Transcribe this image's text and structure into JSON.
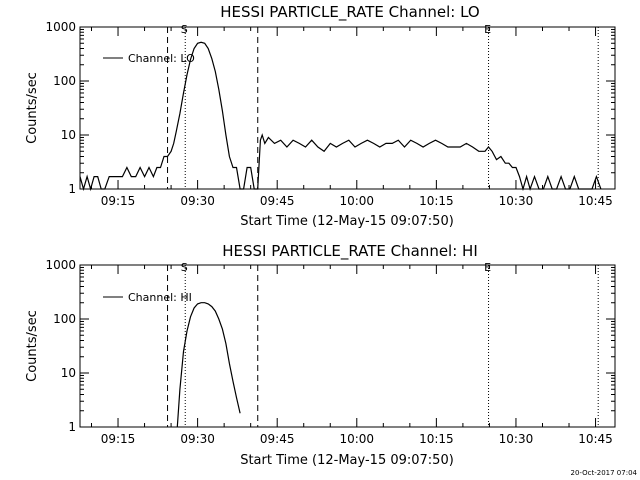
{
  "chart_data": [
    {
      "type": "line",
      "title": "HESSI PARTICLE_RATE Channel: LO",
      "xlabel": "Start Time (12-May-15 09:07:50)",
      "ylabel": "Counts/sec",
      "y_scale": "log",
      "ylim": [
        1,
        1000
      ],
      "xlim": [
        "09:07:50",
        "10:48:40"
      ],
      "x_ticks": [
        "09:15",
        "09:30",
        "09:45",
        "10:00",
        "10:15",
        "10:30",
        "10:45"
      ],
      "y_ticks": [
        "1",
        "10",
        "100",
        "1000"
      ],
      "legend": {
        "placement": "top-left",
        "entries": [
          "Channel: LO"
        ]
      },
      "markers": [
        {
          "time": "09:27:40",
          "style": "dotted",
          "label": "S"
        },
        {
          "time": "10:24:50",
          "style": "dotted",
          "label": "E"
        },
        {
          "time": "10:45:30",
          "style": "dotted",
          "label": ""
        },
        {
          "time": "09:24:20",
          "style": "dashed",
          "label": ""
        },
        {
          "time": "09:41:20",
          "style": "dashed",
          "label": ""
        }
      ],
      "series": [
        {
          "name": "Channel: LO",
          "x": [
            "09:07:50",
            "09:08:30",
            "09:09:10",
            "09:09:50",
            "09:10:30",
            "09:11:10",
            "09:11:50",
            "09:12:30",
            "09:13:20",
            "09:14:10",
            "09:15:00",
            "09:15:50",
            "09:16:40",
            "09:17:30",
            "09:18:20",
            "09:19:10",
            "09:20:00",
            "09:20:50",
            "09:21:40",
            "09:22:20",
            "09:23:00",
            "09:23:40",
            "09:24:20",
            "09:25:00",
            "09:25:30",
            "09:26:00",
            "09:26:40",
            "09:27:20",
            "09:28:00",
            "09:28:40",
            "09:29:20",
            "09:30:00",
            "09:30:40",
            "09:31:20",
            "09:32:00",
            "09:32:40",
            "09:33:20",
            "09:34:00",
            "09:34:40",
            "09:35:20",
            "09:36:00",
            "09:36:40",
            "09:37:20",
            "09:38:00",
            "09:38:40",
            "09:39:20",
            "09:40:00",
            "09:40:40",
            "09:41:20",
            "09:41:50",
            "09:42:10",
            "09:42:40",
            "09:43:20",
            "09:44:30",
            "09:45:40",
            "09:46:50",
            "09:48:00",
            "09:49:10",
            "09:50:20",
            "09:51:30",
            "09:52:40",
            "09:53:50",
            "09:55:00",
            "09:56:10",
            "09:57:20",
            "09:58:30",
            "09:59:40",
            "10:00:50",
            "10:02:00",
            "10:03:10",
            "10:04:20",
            "10:05:30",
            "10:06:40",
            "10:07:50",
            "10:09:00",
            "10:10:10",
            "10:11:20",
            "10:12:30",
            "10:13:40",
            "10:14:50",
            "10:16:00",
            "10:17:10",
            "10:18:20",
            "10:19:30",
            "10:20:40",
            "10:21:50",
            "10:23:00",
            "10:24:10",
            "10:24:50",
            "10:25:30",
            "10:26:20",
            "10:27:10",
            "10:28:00",
            "10:28:40",
            "10:29:20",
            "10:30:00",
            "10:30:40",
            "10:31:20",
            "10:32:00",
            "10:32:40",
            "10:33:30",
            "10:34:20",
            "10:35:10",
            "10:36:00",
            "10:36:50",
            "10:37:40",
            "10:38:30",
            "10:39:20",
            "10:40:10",
            "10:41:00",
            "10:41:50",
            "10:42:40",
            "10:43:30",
            "10:44:20",
            "10:45:10",
            "10:46:00"
          ],
          "y": [
            1.7,
            1,
            1.7,
            1,
            1.7,
            1.7,
            1,
            1,
            1.7,
            1.7,
            1.7,
            1.7,
            2.5,
            1.7,
            1.7,
            2.5,
            1.7,
            2.5,
            1.7,
            2.5,
            2.5,
            4,
            4,
            5,
            7,
            12,
            25,
            60,
            130,
            250,
            400,
            500,
            520,
            500,
            400,
            260,
            150,
            70,
            28,
            10,
            4,
            2.5,
            2.5,
            1,
            1,
            2.5,
            2.5,
            1,
            1,
            8,
            10,
            7,
            9,
            7,
            8,
            6,
            8,
            7,
            6,
            8,
            6,
            5,
            7,
            6,
            7,
            8,
            6,
            7,
            8,
            7,
            6,
            7,
            7,
            8,
            6,
            8,
            7,
            6,
            7,
            8,
            7,
            6,
            6,
            6,
            7,
            6,
            5,
            5,
            6,
            5,
            3.5,
            4,
            3,
            3,
            2.5,
            2.5,
            1.7,
            1,
            1.7,
            1,
            1.7,
            1,
            1,
            1.7,
            1,
            1,
            1.7,
            1,
            1,
            1.7,
            1,
            1,
            1,
            1,
            1.7,
            1
          ]
        }
      ]
    },
    {
      "type": "line",
      "title": "HESSI PARTICLE_RATE Channel: HI",
      "xlabel": "Start Time (12-May-15 09:07:50)",
      "ylabel": "Counts/sec",
      "y_scale": "log",
      "ylim": [
        1,
        1000
      ],
      "xlim": [
        "09:07:50",
        "10:48:40"
      ],
      "x_ticks": [
        "09:15",
        "09:30",
        "09:45",
        "10:00",
        "10:15",
        "10:30",
        "10:45"
      ],
      "y_ticks": [
        "1",
        "10",
        "100",
        "1000"
      ],
      "legend": {
        "placement": "top-left",
        "entries": [
          "Channel: HI"
        ]
      },
      "markers": [
        {
          "time": "09:27:40",
          "style": "dotted",
          "label": "S"
        },
        {
          "time": "10:24:50",
          "style": "dotted",
          "label": "E"
        },
        {
          "time": "10:45:30",
          "style": "dotted",
          "label": ""
        },
        {
          "time": "09:24:20",
          "style": "dashed",
          "label": ""
        },
        {
          "time": "09:41:20",
          "style": "dashed",
          "label": ""
        }
      ],
      "series": [
        {
          "name": "Channel: HI",
          "x": [
            "09:26:10",
            "09:26:40",
            "09:27:20",
            "09:28:00",
            "09:28:40",
            "09:29:20",
            "09:30:00",
            "09:30:40",
            "09:31:20",
            "09:32:00",
            "09:32:40",
            "09:33:20",
            "09:34:00",
            "09:34:40",
            "09:35:20",
            "09:36:00",
            "09:36:40",
            "09:37:20",
            "09:38:00"
          ],
          "y": [
            1,
            5,
            25,
            60,
            110,
            160,
            190,
            200,
            200,
            190,
            170,
            140,
            100,
            65,
            35,
            15,
            7,
            3.5,
            1.8
          ]
        }
      ]
    }
  ],
  "footer": {
    "timestamp": "20-Oct-2017 07:04"
  }
}
